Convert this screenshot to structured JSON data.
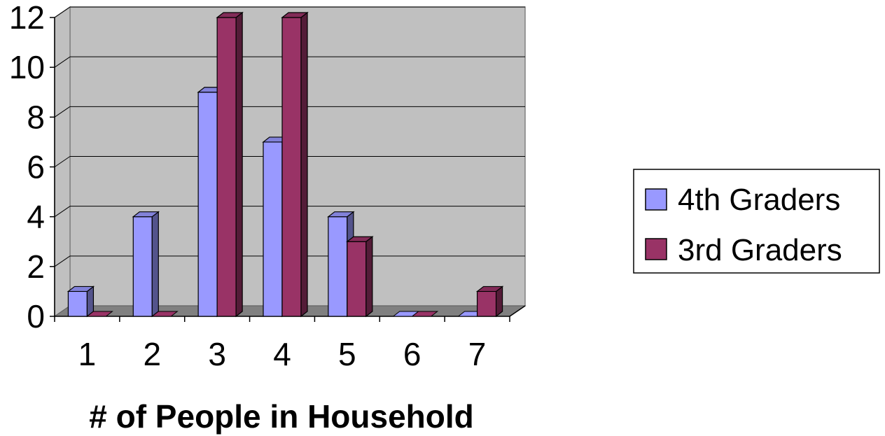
{
  "chart_data": {
    "type": "bar",
    "categories": [
      "1",
      "2",
      "3",
      "4",
      "5",
      "6",
      "7"
    ],
    "series": [
      {
        "name": "4th Graders",
        "values": [
          1,
          4,
          9,
          7,
          4,
          0,
          0
        ],
        "color": "#9999ff"
      },
      {
        "name": "3rd Graders",
        "values": [
          0,
          0,
          12,
          12,
          3,
          0,
          1
        ],
        "color": "#993366"
      }
    ],
    "xlabel": "# of People in Household",
    "ylabel": "",
    "ylim": [
      0,
      12
    ],
    "yticks": [
      "0",
      "2",
      "4",
      "6",
      "8",
      "10",
      "12"
    ],
    "grid": true,
    "legend_position": "right",
    "style": "3d-clustered-column"
  }
}
